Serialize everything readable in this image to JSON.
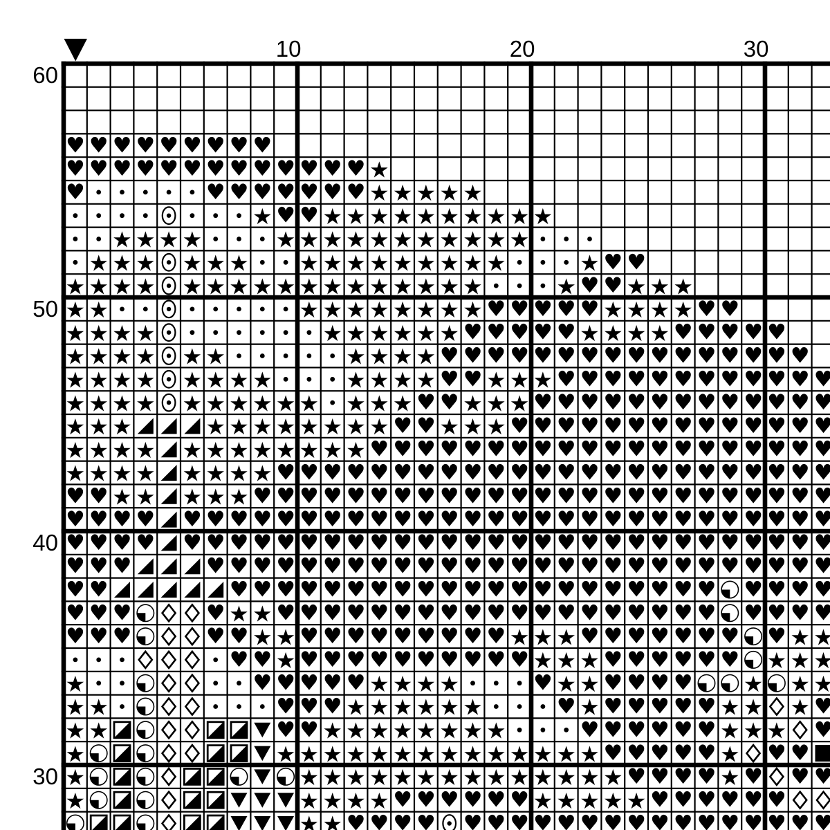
{
  "page": {
    "background": "#ffffff",
    "ink": "#000000"
  },
  "marker": {
    "name": "start-marker",
    "shape": "down-triangle",
    "column": 1
  },
  "chart_data": {
    "type": "table",
    "description": "cross-stitch symbol pattern grid",
    "x_axis": {
      "labels": [
        {
          "label": "10",
          "col": 10
        },
        {
          "label": "20",
          "col": 20
        },
        {
          "label": "30",
          "col": 30
        }
      ]
    },
    "y_axis": {
      "labels": [
        {
          "label": "60",
          "row": 60
        },
        {
          "label": "50",
          "row": 50
        },
        {
          "label": "40",
          "row": 40
        },
        {
          "label": "30",
          "row": 30
        }
      ]
    },
    "columns_visible": {
      "first": 1,
      "last": 33
    },
    "rows_visible": {
      "first": 60,
      "last": 28
    },
    "grid_accent_every": 10,
    "legend": {
      ".": {
        "name": "empty",
        "glyph": ""
      },
      "H": {
        "name": "heart",
        "glyph": "♥"
      },
      "S": {
        "name": "star",
        "glyph": "★"
      },
      "d": {
        "name": "dot",
        "glyph": "·"
      },
      "O": {
        "name": "circled-dot",
        "glyph": "◉"
      },
      "T": {
        "name": "corner-triangle",
        "glyph": "◢"
      },
      "D": {
        "name": "diamond-outline",
        "glyph": "◇"
      },
      "Q": {
        "name": "quarter-circle",
        "glyph": "◔"
      },
      "R": {
        "name": "half-square",
        "glyph": "◪"
      },
      "V": {
        "name": "down-triangle",
        "glyph": "▼"
      },
      "F": {
        "name": "filled-square",
        "glyph": "■"
      }
    },
    "rows": [
      {
        "row": 60,
        "cells": "................................."
      },
      {
        "row": 59,
        "cells": "................................."
      },
      {
        "row": 58,
        "cells": "................................."
      },
      {
        "row": 57,
        "cells": "HHHHHHHHH........................"
      },
      {
        "row": 56,
        "cells": "HHHHHHHHHHHHHS..................."
      },
      {
        "row": 55,
        "cells": "HdddddHHHHHHHSSSSS..............."
      },
      {
        "row": 54,
        "cells": "ddddOdddSHHSSSSSSSSSS............"
      },
      {
        "row": 53,
        "cells": "ddSSSSdddSSSSSSSSSSSddd.........."
      },
      {
        "row": 52,
        "cells": "dSSSOSSSddSSSSSSSSSdddSHH........"
      },
      {
        "row": 51,
        "cells": "SSSSOSSSSSSSSSSSSSdddSHHSSS......"
      },
      {
        "row": 50,
        "cells": "SSddOdddddSSSSSSSSHHHHHSSSSHH...."
      },
      {
        "row": 49,
        "cells": "SSSSOddddddSSSSSSHHHHHSSSSHHHHH.."
      },
      {
        "row": 48,
        "cells": "SSSSOSSdddddSSSSHHHHHHHHHHHHHHHH."
      },
      {
        "row": 47,
        "cells": "SSSSOSSSSdddSSSSHHSSSHHHHHHHHHHHH"
      },
      {
        "row": 46,
        "cells": "SSSSOSSSSSSdSSSHHSSSHHHHHHHHHHHHH"
      },
      {
        "row": 45,
        "cells": "SSSTTTSSSSSSSSHHSSSHHHHHHHHHHHHHH"
      },
      {
        "row": 44,
        "cells": "SSSSTSSSSSSSSHHHHHHHHHHHHHHHHHHHH"
      },
      {
        "row": 43,
        "cells": "SSSSTSSSSHHHHHHHHHHHHHHHHHHHHHHHH"
      },
      {
        "row": 42,
        "cells": "HHSSTSSSHHHHHHHHHHHHHHHHHHHHHHHHH"
      },
      {
        "row": 41,
        "cells": "HHHHTHHHHHHHHHHHHHHHHHHHHHHHHHHHH"
      },
      {
        "row": 40,
        "cells": "HHHHTHHHHHHHHHHHHHHHHHHHHHHHHHHHH"
      },
      {
        "row": 39,
        "cells": "HHHTTTHHHHHHHHHHHHHHHHHHHHHHHHHHH"
      },
      {
        "row": 38,
        "cells": "HHTTTTTHHHHHHHHHHHHHHHHHHHHHQHHHH"
      },
      {
        "row": 37,
        "cells": "HHHQDDHSSHHHHHHHHHHHHHHHHHHHQHHHH"
      },
      {
        "row": 36,
        "cells": "HHHQDDHHSSHHHHHHHHHSSSHHHHHHHQHSS"
      },
      {
        "row": 35,
        "cells": "dddDDDdHHSHHHHHHHHHHSSSHHHHHHQSSS"
      },
      {
        "row": 34,
        "cells": "SddQDDddHHHHHSSSSdddHSSHHHHQQSQSS"
      },
      {
        "row": 33,
        "cells": "SSdQDDdddHHHSSSSSSdddHSHHHHHSSDSH"
      },
      {
        "row": 32,
        "cells": "SSRQDDRRVHHSSSSSSSSdddHHHHHHSSSDH"
      },
      {
        "row": 31,
        "cells": "SQRQDDRRVSSSSSSSSSSSSSSHHHHHSDHHF"
      },
      {
        "row": 30,
        "cells": "SQRQDRRQVQSSSSSSSSSSSSSSHHHHSHDHH"
      },
      {
        "row": 29,
        "cells": "SQRQDRRVVVSSSSHHHHHHSSSSSHHHHHHDD"
      },
      {
        "row": 28,
        "cells": "QRRQDRRVVVSSHHHHOHHHHHHHHHHHHHHHH"
      }
    ]
  }
}
